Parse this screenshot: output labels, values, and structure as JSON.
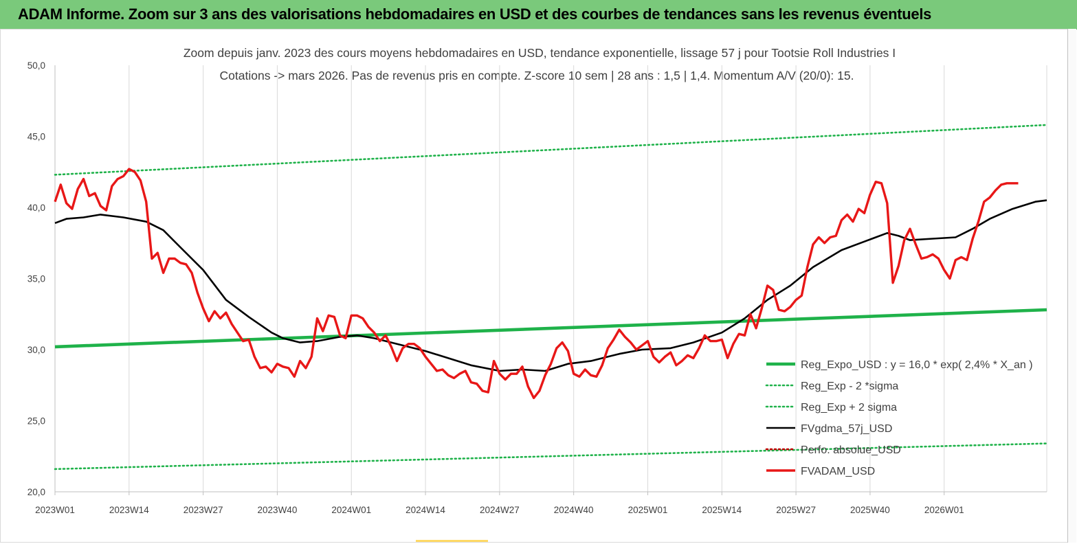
{
  "header": {
    "title": "ADAM Informe. Zoom sur 3 ans des valorisations hebdomadaires en USD et des courbes de tendances sans les revenus éventuels"
  },
  "colors": {
    "header_bg": "#7ac97b",
    "reg_expo": "#1fb24a",
    "fvgdma": "#000000",
    "fvadam": "#e81717",
    "perfo": "#c00000",
    "sigma": "#1fb24a"
  },
  "chart_data": {
    "type": "line",
    "title": "Zoom depuis janv. 2023 des cours moyens hebdomadaires en USD, tendance exponentielle, lissage 57 j pour Tootsie Roll Industries I",
    "subtitle": "Cotations -> mars 2026. Pas de revenus pris en compte. Z-score 10 sem  | 28 ans : 1,5 | 1,4. Momentum A/V (20/0): 15.",
    "xlabel": "",
    "ylabel": "",
    "ylim": [
      20,
      50
    ],
    "yticks": [
      "20,0",
      "25,0",
      "30,0",
      "35,0",
      "40,0",
      "45,0",
      "50,0"
    ],
    "ytick_values": [
      20,
      25,
      30,
      35,
      40,
      45,
      50
    ],
    "xticks": [
      "2023W01",
      "2023W14",
      "2023W27",
      "2023W40",
      "2024W01",
      "2024W14",
      "2024W27",
      "2024W40",
      "2025W01",
      "2025W14",
      "2025W27",
      "2025W40",
      "2026W01"
    ],
    "xtick_index": [
      0,
      13,
      26,
      39,
      52,
      65,
      78,
      91,
      104,
      117,
      130,
      143,
      156
    ],
    "n_weeks": 174,
    "grid": "vertical",
    "legend_position": "bottom-right",
    "series": [
      {
        "name": "Reg_Expo_USD : y = 16,0 * exp( 2,4% *  X_an )",
        "style": "solid-thick",
        "color": "#1fb24a",
        "keypoints": [
          [
            0,
            30.2
          ],
          [
            174,
            32.8
          ]
        ]
      },
      {
        "name": "Reg_Exp - 2 *sigma",
        "style": "dotted",
        "color": "#1fb24a",
        "keypoints": [
          [
            0,
            21.6
          ],
          [
            174,
            23.4
          ]
        ]
      },
      {
        "name": "Reg_Exp + 2 sigma",
        "style": "dotted",
        "color": "#1fb24a",
        "keypoints": [
          [
            0,
            42.3
          ],
          [
            174,
            45.8
          ]
        ]
      },
      {
        "name": "FVgdma_57j_USD",
        "style": "solid",
        "color": "#000000",
        "keypoints": [
          [
            0,
            38.9
          ],
          [
            2,
            39.2
          ],
          [
            5,
            39.3
          ],
          [
            8,
            39.5
          ],
          [
            12,
            39.3
          ],
          [
            16,
            39.0
          ],
          [
            19,
            38.4
          ],
          [
            22,
            37.2
          ],
          [
            26,
            35.6
          ],
          [
            30,
            33.5
          ],
          [
            34,
            32.3
          ],
          [
            38,
            31.2
          ],
          [
            40,
            30.8
          ],
          [
            43,
            30.5
          ],
          [
            46,
            30.6
          ],
          [
            50,
            30.9
          ],
          [
            53,
            31.0
          ],
          [
            56,
            30.8
          ],
          [
            60,
            30.4
          ],
          [
            65,
            29.9
          ],
          [
            69,
            29.4
          ],
          [
            73,
            28.9
          ],
          [
            78,
            28.5
          ],
          [
            82,
            28.6
          ],
          [
            86,
            28.5
          ],
          [
            90,
            29.0
          ],
          [
            94,
            29.2
          ],
          [
            99,
            29.7
          ],
          [
            103,
            30.0
          ],
          [
            108,
            30.1
          ],
          [
            112,
            30.5
          ],
          [
            117,
            31.2
          ],
          [
            121,
            32.2
          ],
          [
            125,
            33.5
          ],
          [
            129,
            34.5
          ],
          [
            133,
            35.8
          ],
          [
            138,
            37.0
          ],
          [
            142,
            37.6
          ],
          [
            146,
            38.2
          ],
          [
            148,
            38.0
          ],
          [
            150,
            37.7
          ],
          [
            154,
            37.8
          ],
          [
            158,
            37.9
          ],
          [
            161,
            38.5
          ],
          [
            164,
            39.2
          ],
          [
            168,
            39.9
          ],
          [
            172,
            40.4
          ],
          [
            174,
            40.5
          ]
        ]
      },
      {
        "name": "Perfo. absolue_USD",
        "style": "dotted",
        "color": "#c00000",
        "keypoints": []
      },
      {
        "name": "FVADAM_USD",
        "style": "solid-thick",
        "color": "#e81717",
        "keypoints": [
          [
            0,
            40.4
          ],
          [
            1,
            41.6
          ],
          [
            2,
            40.3
          ],
          [
            3,
            39.9
          ],
          [
            4,
            41.3
          ],
          [
            5,
            42.0
          ],
          [
            6,
            40.8
          ],
          [
            7,
            41.0
          ],
          [
            8,
            40.1
          ],
          [
            9,
            39.8
          ],
          [
            10,
            41.5
          ],
          [
            11,
            42.0
          ],
          [
            12,
            42.2
          ],
          [
            13,
            42.7
          ],
          [
            14,
            42.5
          ],
          [
            15,
            41.9
          ],
          [
            16,
            40.4
          ],
          [
            17,
            36.4
          ],
          [
            18,
            36.8
          ],
          [
            19,
            35.4
          ],
          [
            20,
            36.4
          ],
          [
            21,
            36.4
          ],
          [
            22,
            36.1
          ],
          [
            23,
            36.0
          ],
          [
            24,
            35.4
          ],
          [
            25,
            34.0
          ],
          [
            26,
            32.9
          ],
          [
            27,
            32.0
          ],
          [
            28,
            32.7
          ],
          [
            29,
            32.2
          ],
          [
            30,
            32.6
          ],
          [
            31,
            31.8
          ],
          [
            32,
            31.2
          ],
          [
            33,
            30.6
          ],
          [
            34,
            30.7
          ],
          [
            35,
            29.5
          ],
          [
            36,
            28.7
          ],
          [
            37,
            28.8
          ],
          [
            38,
            28.4
          ],
          [
            39,
            29.0
          ],
          [
            40,
            28.8
          ],
          [
            41,
            28.7
          ],
          [
            42,
            28.1
          ],
          [
            43,
            29.2
          ],
          [
            44,
            28.7
          ],
          [
            45,
            29.5
          ],
          [
            46,
            32.2
          ],
          [
            47,
            31.3
          ],
          [
            48,
            32.4
          ],
          [
            49,
            32.3
          ],
          [
            50,
            31.0
          ],
          [
            51,
            30.8
          ],
          [
            52,
            32.4
          ],
          [
            53,
            32.4
          ],
          [
            54,
            32.2
          ],
          [
            55,
            31.6
          ],
          [
            56,
            31.2
          ],
          [
            57,
            30.6
          ],
          [
            58,
            31.0
          ],
          [
            59,
            30.2
          ],
          [
            60,
            29.2
          ],
          [
            61,
            30.1
          ],
          [
            62,
            30.4
          ],
          [
            63,
            30.4
          ],
          [
            64,
            30.1
          ],
          [
            65,
            29.5
          ],
          [
            66,
            29.0
          ],
          [
            67,
            28.5
          ],
          [
            68,
            28.6
          ],
          [
            69,
            28.2
          ],
          [
            70,
            28.0
          ],
          [
            71,
            28.3
          ],
          [
            72,
            28.5
          ],
          [
            73,
            27.7
          ],
          [
            74,
            27.6
          ],
          [
            75,
            27.1
          ],
          [
            76,
            27.0
          ],
          [
            77,
            29.2
          ],
          [
            78,
            28.3
          ],
          [
            79,
            27.9
          ],
          [
            80,
            28.3
          ],
          [
            81,
            28.3
          ],
          [
            82,
            28.8
          ],
          [
            83,
            27.4
          ],
          [
            84,
            26.6
          ],
          [
            85,
            27.1
          ],
          [
            86,
            28.2
          ],
          [
            87,
            29.0
          ],
          [
            88,
            30.1
          ],
          [
            89,
            30.5
          ],
          [
            90,
            29.9
          ],
          [
            91,
            28.3
          ],
          [
            92,
            28.1
          ],
          [
            93,
            28.6
          ],
          [
            94,
            28.2
          ],
          [
            95,
            28.1
          ],
          [
            96,
            28.9
          ],
          [
            97,
            30.1
          ],
          [
            98,
            30.7
          ],
          [
            99,
            31.4
          ],
          [
            100,
            30.9
          ],
          [
            101,
            30.5
          ],
          [
            102,
            30.0
          ],
          [
            103,
            30.3
          ],
          [
            104,
            30.6
          ],
          [
            105,
            29.5
          ],
          [
            106,
            29.1
          ],
          [
            107,
            29.5
          ],
          [
            108,
            29.8
          ],
          [
            109,
            28.9
          ],
          [
            110,
            29.2
          ],
          [
            111,
            29.6
          ],
          [
            112,
            29.4
          ],
          [
            113,
            30.1
          ],
          [
            114,
            31.0
          ],
          [
            115,
            30.6
          ],
          [
            116,
            30.6
          ],
          [
            117,
            30.7
          ],
          [
            118,
            29.4
          ],
          [
            119,
            30.4
          ],
          [
            120,
            31.1
          ],
          [
            121,
            31.0
          ],
          [
            122,
            32.5
          ],
          [
            123,
            31.5
          ],
          [
            124,
            32.9
          ],
          [
            125,
            34.5
          ],
          [
            126,
            34.2
          ],
          [
            127,
            32.8
          ],
          [
            128,
            32.7
          ],
          [
            129,
            33.0
          ],
          [
            130,
            33.5
          ],
          [
            131,
            33.8
          ],
          [
            132,
            35.8
          ],
          [
            133,
            37.4
          ],
          [
            134,
            37.9
          ],
          [
            135,
            37.5
          ],
          [
            136,
            37.9
          ],
          [
            137,
            38.0
          ],
          [
            138,
            39.1
          ],
          [
            139,
            39.5
          ],
          [
            140,
            39.0
          ],
          [
            141,
            39.9
          ],
          [
            142,
            39.6
          ],
          [
            143,
            40.9
          ],
          [
            144,
            41.8
          ],
          [
            145,
            41.7
          ],
          [
            146,
            40.3
          ],
          [
            147,
            34.7
          ],
          [
            148,
            35.9
          ],
          [
            149,
            37.7
          ],
          [
            150,
            38.5
          ],
          [
            151,
            37.4
          ],
          [
            152,
            36.4
          ],
          [
            153,
            36.5
          ],
          [
            154,
            36.7
          ],
          [
            155,
            36.4
          ],
          [
            156,
            35.6
          ],
          [
            157,
            35.0
          ],
          [
            158,
            36.3
          ],
          [
            159,
            36.5
          ],
          [
            160,
            36.3
          ],
          [
            161,
            37.8
          ],
          [
            162,
            39.0
          ],
          [
            163,
            40.4
          ],
          [
            164,
            40.7
          ],
          [
            165,
            41.2
          ],
          [
            166,
            41.6
          ],
          [
            167,
            41.7
          ],
          [
            168,
            41.7
          ],
          [
            169,
            41.7
          ]
        ]
      }
    ]
  }
}
